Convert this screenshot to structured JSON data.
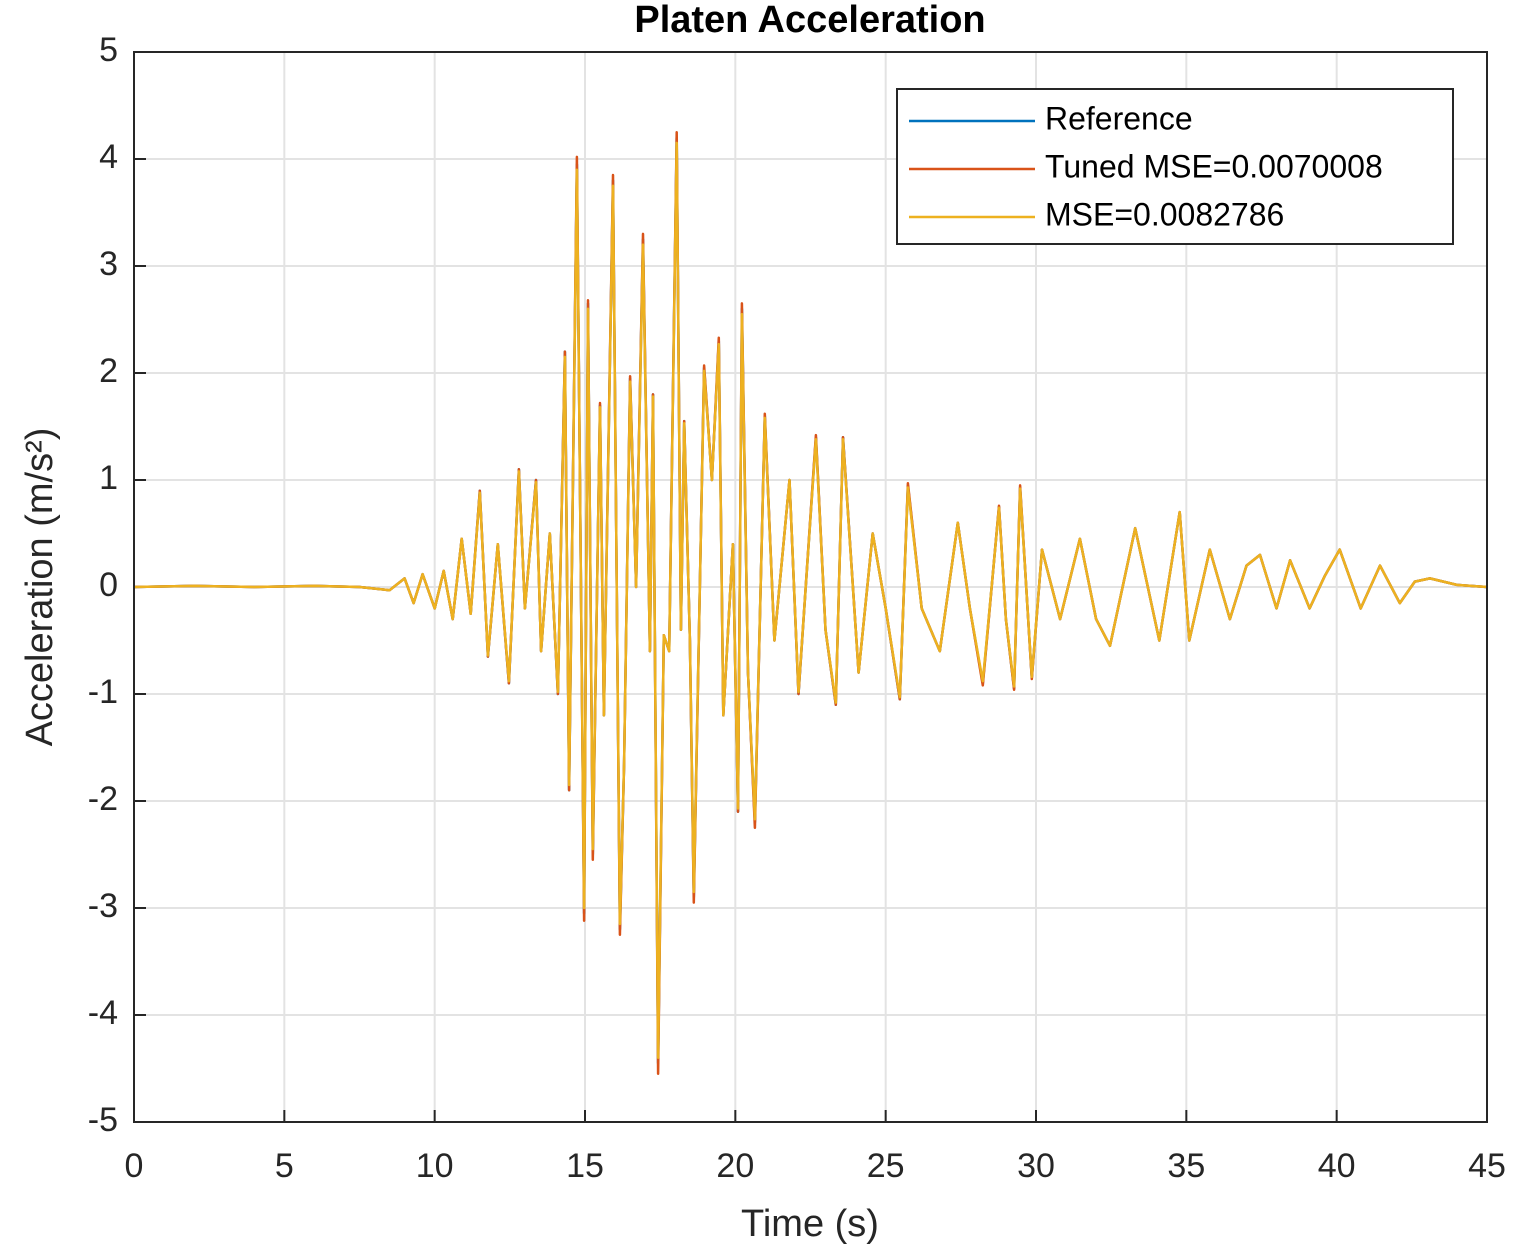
{
  "chart_data": {
    "type": "line",
    "title": "Platen Acceleration",
    "xlabel": "Time (s)",
    "ylabel": "Acceleration (m/s²)",
    "x": [
      0,
      2,
      4,
      6,
      7.5,
      8.5,
      9,
      9.3,
      9.6,
      10,
      10.3,
      10.6,
      10.9,
      11.2,
      11.5,
      11.77,
      12.1,
      12.47,
      12.8,
      13.0,
      13.37,
      13.54,
      13.83,
      14.1,
      14.33,
      14.47,
      14.73,
      14.97,
      15.1,
      15.26,
      15.5,
      15.63,
      15.93,
      16.16,
      16.3,
      16.5,
      16.7,
      16.93,
      17.16,
      17.26,
      17.43,
      17.62,
      17.8,
      18.05,
      18.19,
      18.3,
      18.49,
      18.62,
      18.96,
      19.22,
      19.45,
      19.6,
      19.92,
      20.09,
      20.22,
      20.42,
      20.65,
      20.98,
      21.3,
      21.8,
      22.1,
      22.68,
      23.0,
      23.34,
      23.58,
      24.1,
      24.57,
      25.0,
      25.47,
      25.74,
      26.2,
      26.8,
      27.4,
      27.8,
      28.23,
      28.77,
      29.0,
      29.27,
      29.47,
      29.86,
      30.2,
      30.8,
      31.46,
      32.0,
      32.46,
      33.3,
      34.1,
      34.78,
      35.1,
      35.78,
      36.45,
      37.0,
      37.45,
      38.0,
      38.45,
      39.1,
      39.6,
      40.1,
      40.8,
      41.44,
      42.1,
      42.6,
      43.1,
      44,
      45
    ],
    "series": [
      {
        "name": "Reference",
        "color": "#0072bd",
        "values": [
          0,
          0.01,
          0,
          0.01,
          0,
          -0.03,
          0.08,
          -0.15,
          0.12,
          -0.2,
          0.15,
          -0.3,
          0.45,
          -0.25,
          0.9,
          -0.65,
          0.4,
          -0.9,
          1.1,
          -0.2,
          1.0,
          -0.6,
          0.5,
          -1.0,
          2.2,
          -1.9,
          3.95,
          -3.05,
          2.65,
          -2.5,
          1.7,
          -1.2,
          3.8,
          -3.2,
          -1.65,
          1.95,
          0.0,
          3.25,
          -0.6,
          1.8,
          -4.45,
          -0.45,
          -0.6,
          4.2,
          -0.4,
          1.55,
          -0.5,
          -2.9,
          2.05,
          1.0,
          2.3,
          -1.2,
          0.4,
          -2.1,
          2.6,
          -0.8,
          -2.2,
          1.6,
          -0.5,
          1.0,
          -1.0,
          1.4,
          -0.4,
          -1.1,
          1.4,
          -0.8,
          0.5,
          -0.2,
          -1.05,
          0.95,
          -0.2,
          -0.6,
          0.6,
          -0.2,
          -0.9,
          0.75,
          -0.3,
          -0.95,
          0.93,
          -0.85,
          0.35,
          -0.3,
          0.45,
          -0.3,
          -0.55,
          0.55,
          -0.5,
          0.7,
          -0.5,
          0.35,
          -0.3,
          0.2,
          0.3,
          -0.2,
          0.25,
          -0.2,
          0.1,
          0.35,
          -0.2,
          0.2,
          -0.15,
          0.05,
          0.08,
          0.02,
          0
        ]
      },
      {
        "name": "Tuned MSE=0.0070008",
        "color": "#d95319",
        "values": [
          0,
          0.01,
          0,
          0.01,
          0,
          -0.03,
          0.08,
          -0.15,
          0.12,
          -0.2,
          0.15,
          -0.3,
          0.45,
          -0.25,
          0.9,
          -0.65,
          0.4,
          -0.9,
          1.1,
          -0.2,
          1.0,
          -0.6,
          0.5,
          -1.0,
          2.2,
          -1.9,
          4.02,
          -3.12,
          2.68,
          -2.55,
          1.72,
          -1.2,
          3.85,
          -3.25,
          -1.65,
          1.97,
          0.0,
          3.3,
          -0.6,
          1.8,
          -4.55,
          -0.45,
          -0.6,
          4.25,
          -0.4,
          1.55,
          -0.5,
          -2.95,
          2.07,
          1.0,
          2.33,
          -1.2,
          0.4,
          -2.1,
          2.65,
          -0.8,
          -2.25,
          1.62,
          -0.5,
          1.0,
          -1.0,
          1.42,
          -0.4,
          -1.1,
          1.4,
          -0.8,
          0.5,
          -0.2,
          -1.05,
          0.97,
          -0.2,
          -0.6,
          0.6,
          -0.2,
          -0.92,
          0.76,
          -0.3,
          -0.96,
          0.95,
          -0.86,
          0.35,
          -0.3,
          0.45,
          -0.3,
          -0.55,
          0.55,
          -0.5,
          0.7,
          -0.5,
          0.35,
          -0.3,
          0.2,
          0.3,
          -0.2,
          0.25,
          -0.2,
          0.1,
          0.35,
          -0.2,
          0.2,
          -0.15,
          0.05,
          0.08,
          0.02,
          0
        ]
      },
      {
        "name": "MSE=0.0082786",
        "color": "#edb120",
        "values": [
          0,
          0.01,
          0,
          0.01,
          0,
          -0.03,
          0.08,
          -0.15,
          0.12,
          -0.2,
          0.15,
          -0.3,
          0.45,
          -0.25,
          0.88,
          -0.64,
          0.4,
          -0.88,
          1.08,
          -0.2,
          0.98,
          -0.6,
          0.5,
          -0.98,
          2.15,
          -1.85,
          3.9,
          -3.0,
          2.6,
          -2.45,
          1.68,
          -1.2,
          3.75,
          -3.15,
          -1.65,
          1.92,
          0.0,
          3.2,
          -0.6,
          1.78,
          -4.4,
          -0.45,
          -0.6,
          4.15,
          -0.4,
          1.53,
          -0.5,
          -2.85,
          2.02,
          1.0,
          2.27,
          -1.2,
          0.4,
          -2.07,
          2.55,
          -0.8,
          -2.17,
          1.58,
          -0.5,
          1.0,
          -0.98,
          1.38,
          -0.4,
          -1.08,
          1.38,
          -0.8,
          0.5,
          -0.2,
          -1.03,
          0.93,
          -0.2,
          -0.6,
          0.6,
          -0.2,
          -0.88,
          0.74,
          -0.3,
          -0.93,
          0.92,
          -0.84,
          0.35,
          -0.3,
          0.45,
          -0.3,
          -0.55,
          0.55,
          -0.5,
          0.7,
          -0.5,
          0.35,
          -0.3,
          0.2,
          0.3,
          -0.2,
          0.25,
          -0.2,
          0.1,
          0.35,
          -0.2,
          0.2,
          -0.15,
          0.05,
          0.08,
          0.02,
          0
        ]
      }
    ],
    "xlim": [
      0,
      45
    ],
    "xticks": [
      0,
      5,
      10,
      15,
      20,
      25,
      30,
      35,
      40,
      45
    ],
    "ylim": [
      -5,
      5
    ],
    "yticks": [
      -5,
      -4,
      -3,
      -2,
      -1,
      0,
      1,
      2,
      3,
      4,
      5
    ],
    "grid": true,
    "legend": "northeast"
  }
}
